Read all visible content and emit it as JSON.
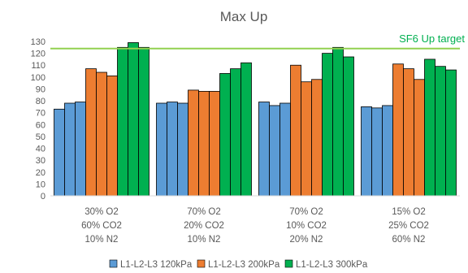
{
  "chart_data": {
    "type": "bar",
    "title": "Max Up",
    "categories": [
      [
        "30% O2",
        "60% CO2",
        "10% N2"
      ],
      [
        "70% O2",
        "20% CO2",
        "10% N2"
      ],
      [
        "70% O2",
        "10% CO2",
        "20% N2"
      ],
      [
        "15% O2",
        "25% CO2",
        "60% N2"
      ]
    ],
    "series": [
      {
        "name": "L1-L2-L3 120kPa",
        "color": "#5b9bd5",
        "values": [
          [
            73,
            78,
            79
          ],
          [
            78,
            79,
            78
          ],
          [
            79,
            76,
            78
          ],
          [
            75,
            74,
            76
          ]
        ]
      },
      {
        "name": "L1-L2-L3 200kPa",
        "color": "#ed7d31",
        "values": [
          [
            107,
            104,
            101
          ],
          [
            89,
            88,
            88
          ],
          [
            110,
            96,
            98
          ],
          [
            111,
            107,
            98
          ]
        ]
      },
      {
        "name": "L1-L2-L3 300kPa",
        "color": "#00b050",
        "values": [
          [
            125,
            129,
            125
          ],
          [
            103,
            107,
            112
          ],
          [
            120,
            125,
            117
          ],
          [
            115,
            109,
            106
          ]
        ]
      }
    ],
    "reference_line": {
      "label": "SF6 Up target",
      "value": 124,
      "color": "#92d050",
      "label_color": "#00b050"
    },
    "yticks": [
      0,
      10,
      20,
      30,
      40,
      50,
      60,
      70,
      80,
      90,
      100,
      110,
      120,
      130
    ],
    "ylim": [
      0,
      130
    ],
    "grid": false,
    "legend_position": "bottom"
  }
}
